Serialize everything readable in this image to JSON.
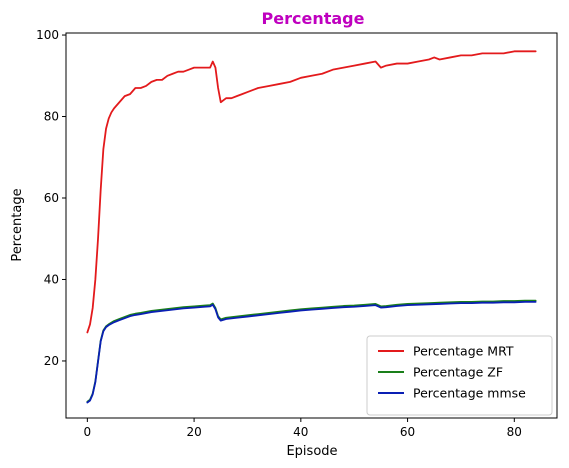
{
  "chart_data": {
    "type": "line",
    "title": "Percentage",
    "title_color": "#bf00bf",
    "xlabel": "Episode",
    "ylabel": "Percentage",
    "xlim": [
      -4,
      88
    ],
    "ylim": [
      6,
      100.5
    ],
    "xticks": [
      0,
      20,
      40,
      60,
      80
    ],
    "yticks": [
      20,
      40,
      60,
      80,
      100
    ],
    "grid": false,
    "legend_position": "lower-right",
    "series": [
      {
        "name": "Percentage MRT",
        "color": "#e31a1c",
        "x": [
          0,
          0.5,
          1,
          1.5,
          2,
          2.5,
          3,
          3.5,
          4,
          4.5,
          5,
          6,
          7,
          8,
          9,
          10,
          11,
          12,
          13,
          14,
          15,
          16,
          17,
          18,
          19,
          20,
          21,
          22,
          23,
          23.5,
          24,
          24.5,
          25,
          26,
          27,
          28,
          29,
          30,
          32,
          34,
          36,
          38,
          40,
          42,
          44,
          46,
          48,
          50,
          52,
          54,
          55,
          56,
          58,
          60,
          62,
          64,
          65,
          66,
          68,
          70,
          72,
          74,
          76,
          78,
          80,
          82,
          84
        ],
        "y": [
          27,
          29,
          33,
          40,
          50,
          62,
          72,
          77,
          79.5,
          81,
          82,
          83.5,
          85,
          85.5,
          87,
          87,
          87.5,
          88.5,
          89,
          89,
          90,
          90.5,
          91,
          91,
          91.5,
          92,
          92,
          92,
          92,
          93.5,
          92,
          87,
          83.5,
          84.5,
          84.5,
          85,
          85.5,
          86,
          87,
          87.5,
          88,
          88.5,
          89.5,
          90,
          90.5,
          91.5,
          92,
          92.5,
          93,
          93.5,
          92,
          92.5,
          93,
          93,
          93.5,
          94,
          94.5,
          94,
          94.5,
          95,
          95,
          95.5,
          95.5,
          95.5,
          96,
          96,
          96
        ]
      },
      {
        "name": "Percentage ZF",
        "color": "#1a7f1a",
        "x": [
          0,
          0.5,
          1,
          1.5,
          2,
          2.5,
          3,
          3.5,
          4,
          5,
          6,
          7,
          8,
          9,
          10,
          12,
          14,
          16,
          18,
          20,
          22,
          23,
          23.5,
          24,
          24.5,
          25,
          26,
          28,
          30,
          32,
          34,
          36,
          38,
          40,
          42,
          44,
          46,
          48,
          50,
          52,
          54,
          55,
          56,
          58,
          60,
          62,
          64,
          66,
          68,
          70,
          72,
          74,
          76,
          78,
          80,
          82,
          84
        ],
        "y": [
          10,
          10.5,
          12,
          15,
          20,
          25,
          27.5,
          28.5,
          29,
          29.8,
          30.3,
          30.8,
          31.3,
          31.6,
          31.8,
          32.3,
          32.6,
          32.9,
          33.2,
          33.4,
          33.6,
          33.7,
          34.1,
          33,
          31,
          30.2,
          30.6,
          30.9,
          31.2,
          31.5,
          31.8,
          32.1,
          32.4,
          32.7,
          32.9,
          33.1,
          33.3,
          33.5,
          33.6,
          33.8,
          34,
          33.4,
          33.5,
          33.8,
          34,
          34.1,
          34.2,
          34.3,
          34.4,
          34.5,
          34.5,
          34.6,
          34.6,
          34.7,
          34.7,
          34.8,
          34.8
        ]
      },
      {
        "name": "Percentage mmse",
        "color": "#0a1fb4",
        "x": [
          0,
          0.5,
          1,
          1.5,
          2,
          2.5,
          3,
          3.5,
          4,
          5,
          6,
          7,
          8,
          9,
          10,
          12,
          14,
          16,
          18,
          20,
          22,
          23,
          23.5,
          24,
          24.5,
          25,
          26,
          28,
          30,
          32,
          34,
          36,
          38,
          40,
          42,
          44,
          46,
          48,
          50,
          52,
          54,
          55,
          56,
          58,
          60,
          62,
          64,
          66,
          68,
          70,
          72,
          74,
          76,
          78,
          80,
          82,
          84
        ],
        "y": [
          9.8,
          10.3,
          11.8,
          14.8,
          19.8,
          24.8,
          27.3,
          28.3,
          28.8,
          29.5,
          30,
          30.5,
          31,
          31.3,
          31.5,
          32,
          32.3,
          32.6,
          32.9,
          33.1,
          33.3,
          33.4,
          33.8,
          32.7,
          30.7,
          29.9,
          30.3,
          30.6,
          30.9,
          31.2,
          31.5,
          31.8,
          32.1,
          32.4,
          32.6,
          32.8,
          33,
          33.2,
          33.3,
          33.5,
          33.7,
          33.1,
          33.2,
          33.5,
          33.7,
          33.8,
          33.9,
          34,
          34.1,
          34.2,
          34.2,
          34.3,
          34.3,
          34.4,
          34.4,
          34.5,
          34.5
        ]
      }
    ]
  }
}
